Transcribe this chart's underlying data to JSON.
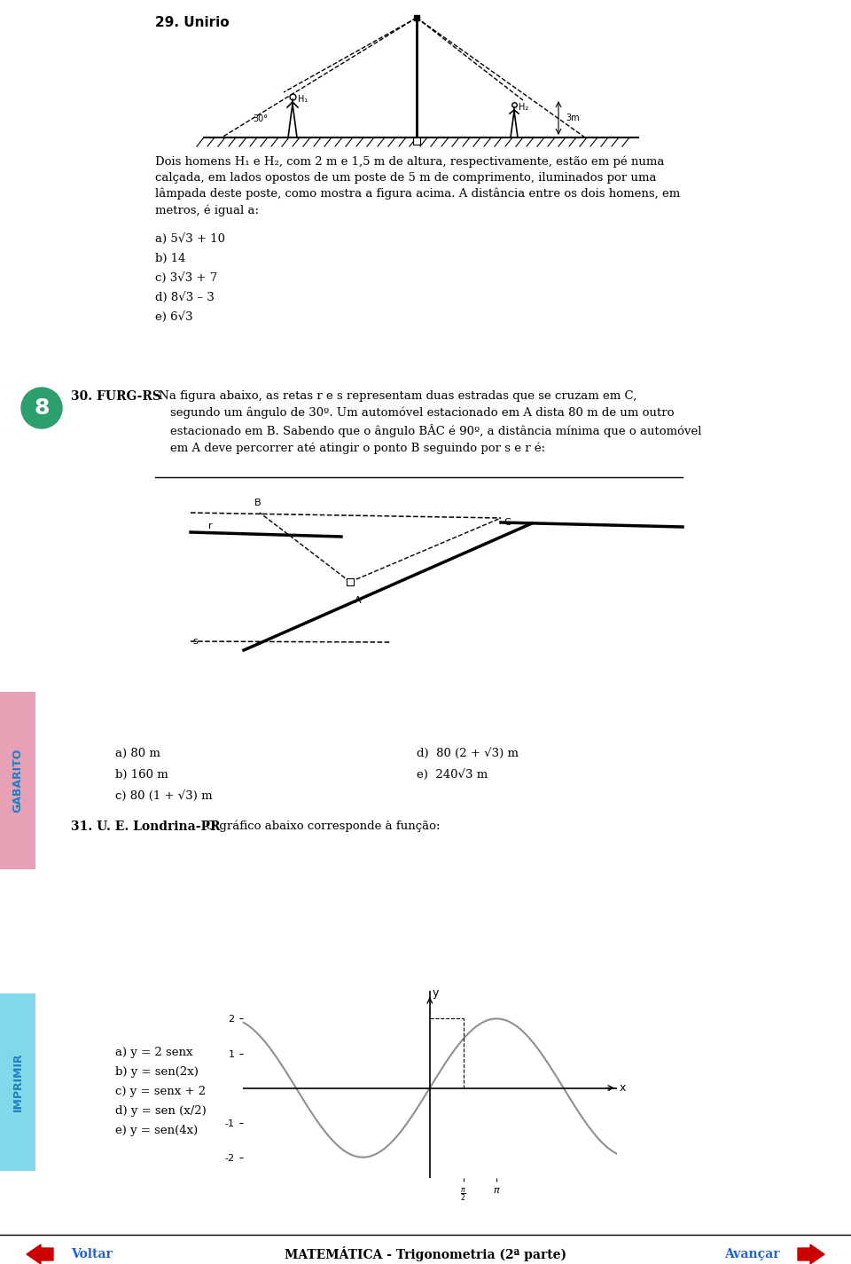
{
  "bg_color": "#ffffff",
  "page_width": 9.6,
  "page_height": 14.25,
  "left_bar_color": "#e8a0b4",
  "right_bar_color": "#80d8e8",
  "left_bar_label": "GABARITO",
  "right_bar_label": "IMPRIMIR",
  "circle_color": "#2d9e6e",
  "circle_number": "8",
  "q29_title": "29. Unirio",
  "q29_text": "Dois homens H₁ e H₂, com 2 m e 1,5 m de altura, respectivamente, estão em pé numa\ncalçada, em lados opostos de um poste de 5 m de comprimento, iluminados por uma\nlâmpada deste poste, como mostra a figura acima. A distância entre os dois homens, em\nmetros, é igual a:",
  "q29_answers": [
    "a) 5√3 + 10",
    "b) 14",
    "c) 3√3 + 7",
    "d) 8√3 – 3",
    "e) 6√3"
  ],
  "q30_title": "30. FURG-RS",
  "q30_text": " Na figura abaixo, as retas r e s representam duas estradas que se cruzam em C,\n    segundo um ângulo de 30º. Um automóvel estacionado em A dista 80 m de um outro\n    estacionado em B. Sabendo que o ângulo BÂC é 90º, a distância mínima que o automóvel\n    em A deve percorrer até atingir o ponto B seguindo por s e r é:",
  "q30_answers_left": [
    "a) 80 m",
    "b) 160 m",
    "c) 80 (1 + √3) m"
  ],
  "q30_answers_right": [
    "d)  80 (2 + √3) m",
    "e)  240√3 m"
  ],
  "q31_title": "31. U. E. Londrina-PR",
  "q31_text": " O gráfico abaixo corresponde à função:",
  "q31_answers": [
    "a) y = 2 senx",
    "b) y = sen(2x)",
    "c) y = senx + 2",
    "d) y = sen (x/2)",
    "e) y = sen(4x)"
  ],
  "footer_text": "MATEMÁTICA - Trigonometria (2ª parte)",
  "voltar_text": "Voltar",
  "avancar_text": "Avançar"
}
